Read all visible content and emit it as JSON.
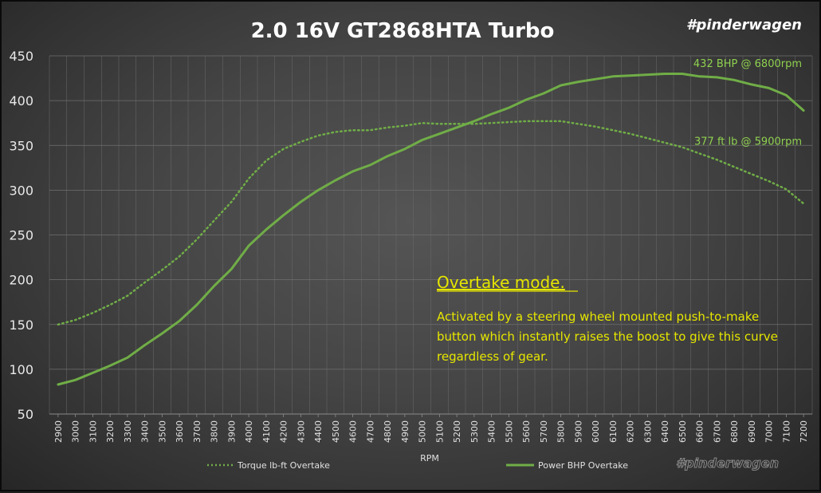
{
  "brand": "#pinderwagen",
  "watermark": "#pinderwagen",
  "colors": {
    "line": "#70ad47",
    "note": "#e6e600",
    "annotation": "#8fd14f"
  },
  "note": {
    "title": "Overtake mode.",
    "lines": [
      "Activated by a steering wheel mounted push-to-make",
      "button which instantly raises the boost to give this curve",
      "regardless of gear."
    ]
  },
  "chart_data": {
    "type": "line",
    "title": "2.0 16V GT2868HTA Turbo",
    "xlabel": "RPM",
    "ylabel": "",
    "ylim": [
      50,
      450
    ],
    "yticks": [
      50,
      100,
      150,
      200,
      250,
      300,
      350,
      400,
      450
    ],
    "x": [
      2900,
      3000,
      3100,
      3200,
      3300,
      3400,
      3500,
      3600,
      3700,
      3800,
      3900,
      4000,
      4100,
      4200,
      4300,
      4400,
      4500,
      4600,
      4700,
      4800,
      4900,
      5000,
      5100,
      5200,
      5300,
      5400,
      5500,
      5600,
      5700,
      5800,
      5900,
      6000,
      6100,
      6200,
      6300,
      6400,
      6500,
      6600,
      6700,
      6800,
      6900,
      7000,
      7100,
      7200
    ],
    "grid": true,
    "legend_position": "bottom",
    "series": [
      {
        "name": "Torque lb-ft Overtake",
        "style": "dotted",
        "values": [
          150,
          155,
          163,
          172,
          182,
          197,
          211,
          226,
          245,
          266,
          287,
          313,
          333,
          346,
          354,
          361,
          365,
          367,
          367,
          370,
          372,
          375,
          374,
          374,
          374,
          375,
          376,
          377,
          377,
          377,
          374,
          371,
          367,
          363,
          358,
          353,
          348,
          341,
          334,
          326,
          318,
          310,
          301,
          285
        ]
      },
      {
        "name": "Power BHP Overtake",
        "style": "solid",
        "values": [
          83,
          88,
          96,
          104,
          113,
          127,
          140,
          154,
          172,
          193,
          212,
          238,
          256,
          272,
          287,
          300,
          311,
          321,
          328,
          338,
          346,
          356,
          363,
          370,
          377,
          385,
          392,
          401,
          408,
          417,
          421,
          424,
          427,
          428,
          429,
          430,
          430,
          427,
          426,
          423,
          418,
          414,
          406,
          389
        ]
      }
    ],
    "annotations": [
      {
        "text": "432 BHP @ 6800rpm",
        "x": 7200,
        "y": 442
      },
      {
        "text": "377 ft lb @ 5900rpm",
        "x": 7200,
        "y": 355
      }
    ]
  }
}
